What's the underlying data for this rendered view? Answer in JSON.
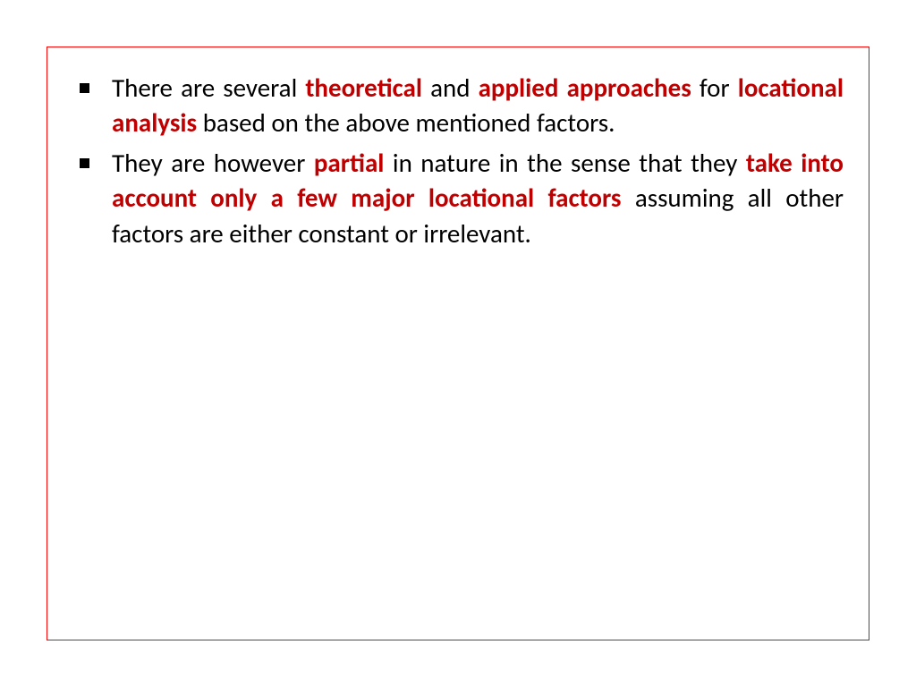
{
  "colors": {
    "border": "#ff0000",
    "text": "#000000",
    "emphasis": "#c00000",
    "background": "#ffffff"
  },
  "typography": {
    "font_family": "Calibri",
    "font_size_pt": 22,
    "line_height": 1.35,
    "text_align": "justify",
    "emphasis_weight": "bold"
  },
  "bullets": [
    {
      "runs": [
        {
          "t": "There are several ",
          "em": false
        },
        {
          "t": "theoretical",
          "em": true
        },
        {
          "t": " and ",
          "em": false
        },
        {
          "t": "applied approaches",
          "em": true
        },
        {
          "t": " for ",
          "em": false
        },
        {
          "t": "locational analysis",
          "em": true
        },
        {
          "t": " based on the above mentioned factors.",
          "em": false
        }
      ]
    },
    {
      "runs": [
        {
          "t": "They are however ",
          "em": false
        },
        {
          "t": "partial",
          "em": true
        },
        {
          "t": " in nature in the sense that they ",
          "em": false
        },
        {
          "t": "take into account only a few major locational factors",
          "em": true
        },
        {
          "t": " assuming all other factors are  either constant or irrelevant.",
          "em": false
        }
      ]
    }
  ]
}
